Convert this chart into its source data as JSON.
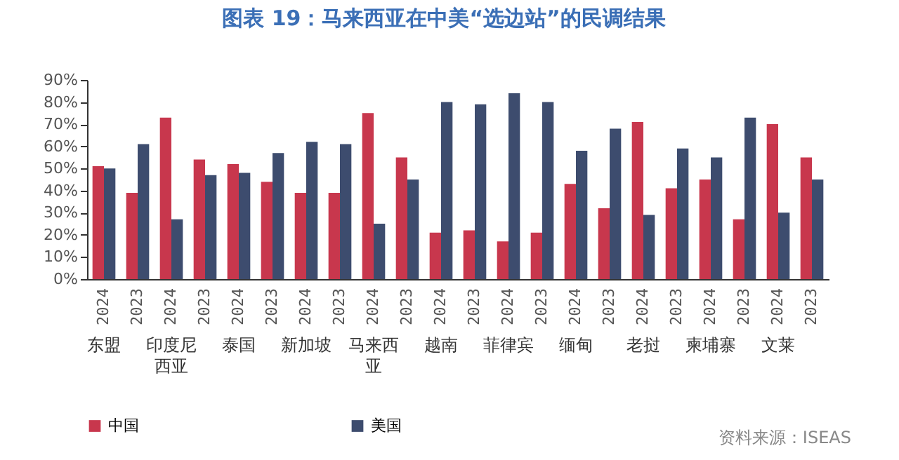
{
  "chart_data": {
    "type": "bar",
    "title": "图表 19：马来西亚在中美“选边站”的民调结果",
    "categories": [
      "2024",
      "2023",
      "2024",
      "2023",
      "2024",
      "2023",
      "2024",
      "2023",
      "2024",
      "2023",
      "2024",
      "2023",
      "2024",
      "2023",
      "2024",
      "2023",
      "2024",
      "2023",
      "2024",
      "2023",
      "2024",
      "2023"
    ],
    "series": [
      {
        "name": "中国",
        "color": "#c8374d",
        "values": [
          51,
          39,
          73,
          54,
          52,
          44,
          39,
          39,
          75,
          55,
          21,
          22,
          17,
          21,
          43,
          32,
          71,
          41,
          45,
          27,
          70,
          55
        ]
      },
      {
        "name": "美国",
        "color": "#3d4c6e",
        "values": [
          50,
          61,
          27,
          47,
          48,
          57,
          62,
          61,
          25,
          45,
          80,
          79,
          84,
          80,
          58,
          68,
          29,
          59,
          55,
          73,
          30,
          45
        ]
      }
    ],
    "ylim": [
      0,
      90
    ],
    "yticks": [
      {
        "value": 0,
        "label": "0%"
      },
      {
        "value": 10,
        "label": "10%"
      },
      {
        "value": 20,
        "label": "20%"
      },
      {
        "value": 30,
        "label": "30%"
      },
      {
        "value": 40,
        "label": "40%"
      },
      {
        "value": 50,
        "label": "50%"
      },
      {
        "value": 60,
        "label": "60%"
      },
      {
        "value": 70,
        "label": "70%"
      },
      {
        "value": 80,
        "label": "80%"
      },
      {
        "value": 90,
        "label": "90%"
      }
    ],
    "grid": false,
    "legend": "bottom",
    "annotations": [
      "东盟",
      "印度尼西亚",
      "泰国",
      "新加坡",
      "马来西亚",
      "越南",
      "菲律宾",
      "缅甸",
      "老挝",
      "柬埔寨",
      "文莱",
      "资料来源：ISEAS"
    ]
  }
}
